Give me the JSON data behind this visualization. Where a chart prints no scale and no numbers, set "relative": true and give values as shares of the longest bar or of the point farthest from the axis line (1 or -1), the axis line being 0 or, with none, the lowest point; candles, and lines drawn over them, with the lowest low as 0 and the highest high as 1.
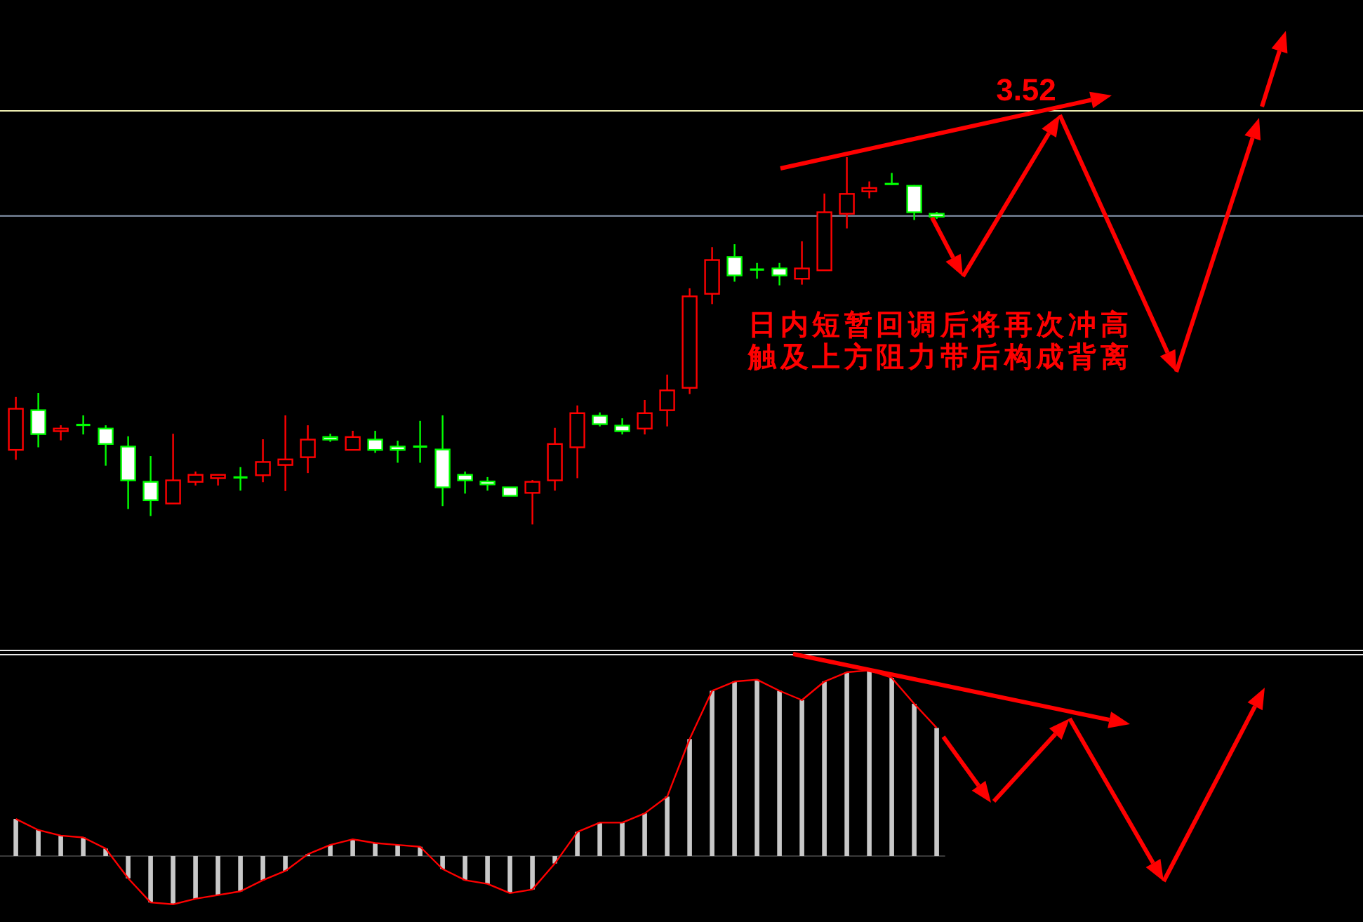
{
  "chart_data": [
    {
      "type": "candlestick",
      "relative": true,
      "categories": [
        null,
        null,
        null,
        null,
        null,
        null,
        null,
        null,
        null,
        null,
        null,
        null,
        null,
        null,
        null,
        null,
        null,
        null,
        null,
        null,
        null,
        null,
        null,
        null,
        null,
        null,
        null,
        null,
        null,
        null,
        null,
        null,
        null,
        null,
        null,
        null,
        null,
        null,
        null,
        null,
        null,
        null
      ],
      "ohlc": [
        [
          0.203,
          0.347,
          0.176,
          0.315
        ],
        [
          0.311,
          0.358,
          0.21,
          0.246
        ],
        [
          0.254,
          0.27,
          0.229,
          0.261
        ],
        [
          0.271,
          0.297,
          0.245,
          0.271
        ],
        [
          0.261,
          0.27,
          0.16,
          0.219
        ],
        [
          0.212,
          0.24,
          0.042,
          0.12
        ],
        [
          0.116,
          0.186,
          0.023,
          0.066
        ],
        [
          0.057,
          0.247,
          0.057,
          0.12
        ],
        [
          0.116,
          0.144,
          0.106,
          0.135
        ],
        [
          0.126,
          0.135,
          0.106,
          0.135
        ],
        [
          0.128,
          0.156,
          0.092,
          0.128
        ],
        [
          0.134,
          0.232,
          0.115,
          0.17
        ],
        [
          0.162,
          0.297,
          0.091,
          0.177
        ],
        [
          0.183,
          0.27,
          0.14,
          0.231
        ],
        [
          0.238,
          0.247,
          0.225,
          0.231
        ],
        [
          0.203,
          0.255,
          0.203,
          0.238
        ],
        [
          0.231,
          0.255,
          0.195,
          0.203
        ],
        [
          0.212,
          0.228,
          0.168,
          0.203
        ],
        [
          0.212,
          0.282,
          0.168,
          0.212
        ],
        [
          0.204,
          0.297,
          0.05,
          0.101
        ],
        [
          0.135,
          0.144,
          0.084,
          0.12
        ],
        [
          0.117,
          0.129,
          0.092,
          0.109
        ],
        [
          0.101,
          0.101,
          0.078,
          0.078
        ],
        [
          0.086,
          0.121,
          0,
          0.116
        ],
        [
          0.12,
          0.263,
          0.092,
          0.219
        ],
        [
          0.21,
          0.324,
          0.126,
          0.303
        ],
        [
          0.296,
          0.305,
          0.267,
          0.273
        ],
        [
          0.269,
          0.289,
          0.245,
          0.254
        ],
        [
          0.261,
          0.339,
          0.245,
          0.303
        ],
        [
          0.311,
          0.408,
          0.267,
          0.365
        ],
        [
          0.372,
          0.643,
          0.355,
          0.621
        ],
        [
          0.628,
          0.755,
          0.6,
          0.72
        ],
        [
          0.728,
          0.763,
          0.661,
          0.678
        ],
        [
          0.694,
          0.712,
          0.669,
          0.694
        ],
        [
          0.697,
          0.712,
          0.651,
          0.678
        ],
        [
          0.669,
          0.771,
          0.653,
          0.697
        ],
        [
          0.692,
          0.901,
          0.692,
          0.85
        ],
        [
          0.846,
          1,
          0.806,
          0.9
        ],
        [
          0.907,
          0.934,
          0.888,
          0.916
        ],
        [
          0.927,
          0.957,
          0.924,
          0.927
        ],
        [
          0.922,
          0.924,
          0.829,
          0.85
        ],
        [
          0.846,
          0.851,
          0.832,
          0.838
        ]
      ],
      "colors": [
        "#ff0000",
        "#00ff00",
        "#ff0000",
        "#00ff00",
        "#00ff00",
        "#00ff00",
        "#00ff00",
        "#ff0000",
        "#ff0000",
        "#ff0000",
        "#00ff00",
        "#ff0000",
        "#ff0000",
        "#ff0000",
        "#00ff00",
        "#ff0000",
        "#00ff00",
        "#00ff00",
        "#00ff00",
        "#00ff00",
        "#00ff00",
        "#00ff00",
        "#00ff00",
        "#ff0000",
        "#ff0000",
        "#ff0000",
        "#00ff00",
        "#00ff00",
        "#ff0000",
        "#ff0000",
        "#ff0000",
        "#ff0000",
        "#00ff00",
        "#00ff00",
        "#00ff00",
        "#ff0000",
        "#ff0000",
        "#ff0000",
        "#ff0000",
        "#00ff00",
        "#00ff00",
        "#00ff00"
      ],
      "ref_lines": [
        {
          "axis": "y",
          "value": 1.126,
          "color": "#f0f0b4"
        },
        {
          "axis": "y",
          "value": 0.84,
          "color": "#8c9cb4"
        }
      ],
      "annotations": [
        "3.52",
        "日内短暂回调后将再次冲高",
        "触及上方阻力带后构成背离"
      ]
    },
    {
      "type": "bar",
      "relative": true,
      "categories": [
        null,
        null,
        null,
        null,
        null,
        null,
        null,
        null,
        null,
        null,
        null,
        null,
        null,
        null,
        null,
        null,
        null,
        null,
        null,
        null,
        null,
        null,
        null,
        null,
        null,
        null,
        null,
        null,
        null,
        null,
        null,
        null,
        null,
        null,
        null,
        null,
        null,
        null,
        null,
        null,
        null,
        null
      ],
      "series": [
        {
          "type": "bar",
          "color": "#c8c8c8",
          "values": [
            0.2,
            0.14,
            0.11,
            0.1,
            0.04,
            -0.12,
            -0.25,
            -0.26,
            -0.23,
            -0.21,
            -0.19,
            -0.13,
            -0.08,
            0.01,
            0.06,
            0.09,
            0.07,
            0.06,
            0.05,
            -0.07,
            -0.13,
            -0.15,
            -0.2,
            -0.18,
            -0.04,
            0.13,
            0.18,
            0.18,
            0.23,
            0.32,
            0.63,
            0.89,
            0.94,
            0.95,
            0.89,
            0.84,
            0.94,
            0.99,
            1,
            0.96,
            0.82,
            0.69
          ]
        },
        {
          "type": "line",
          "color": "#ff0000",
          "values": [
            0.2,
            0.14,
            0.11,
            0.1,
            0.04,
            -0.12,
            -0.25,
            -0.26,
            -0.23,
            -0.21,
            -0.19,
            -0.13,
            -0.08,
            0.01,
            0.06,
            0.09,
            0.07,
            0.06,
            0.05,
            -0.07,
            -0.13,
            -0.15,
            -0.2,
            -0.18,
            -0.04,
            0.13,
            0.18,
            0.18,
            0.23,
            0.32,
            0.63,
            0.89,
            0.94,
            0.95,
            0.89,
            0.84,
            0.94,
            0.99,
            1,
            0.96,
            0.82,
            0.69
          ]
        }
      ]
    }
  ]
}
